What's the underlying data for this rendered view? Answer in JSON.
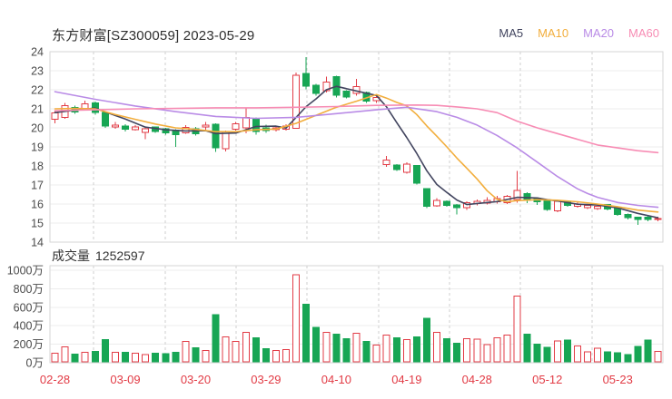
{
  "header": {
    "title": "东方财富[SZ300059] 2023-05-29",
    "legend": [
      {
        "label": "MA5",
        "color": "#42455f"
      },
      {
        "label": "MA10",
        "color": "#f2ae3d"
      },
      {
        "label": "MA20",
        "color": "#b98be6"
      },
      {
        "label": "MA60",
        "color": "#f78cb4"
      }
    ]
  },
  "volume_header": {
    "label": "成交量",
    "value": "1252597"
  },
  "chart_data": {
    "type": "candlestick",
    "title": "东方财富[SZ300059] 2023-05-29",
    "stock": {
      "name": "东方财富",
      "code": "SZ300059",
      "date": "2023-05-29"
    },
    "colors": {
      "up": "#e23b45",
      "down": "#17a654",
      "x_label": "#e23b45",
      "axis_text": "#4a4a4a",
      "grid": "#ececec",
      "grid_dash": "#cfcfcf",
      "border": "#d6d6d6"
    },
    "price_axis": {
      "ticks": [
        24,
        23,
        22,
        21,
        20,
        19,
        18,
        17,
        16,
        15,
        14
      ],
      "max": 24,
      "min": 14
    },
    "volume_axis": {
      "unit": "万",
      "ticks": [
        {
          "label": "1000万",
          "v": 1000
        },
        {
          "label": "800万",
          "v": 800
        },
        {
          "label": "600万",
          "v": 600
        },
        {
          "label": "400万",
          "v": 400
        },
        {
          "label": "200万",
          "v": 200
        },
        {
          "label": "0万",
          "v": 0
        }
      ],
      "max_wan": 1000
    },
    "x_axis": {
      "labels": [
        {
          "index": 0,
          "label": "02-28"
        },
        {
          "index": 7,
          "label": "03-09"
        },
        {
          "index": 14,
          "label": "03-20"
        },
        {
          "index": 21,
          "label": "03-29"
        },
        {
          "index": 28,
          "label": "04-10"
        },
        {
          "index": 35,
          "label": "04-19"
        },
        {
          "index": 42,
          "label": "04-28"
        },
        {
          "index": 49,
          "label": "05-12"
        },
        {
          "index": 56,
          "label": "05-23"
        }
      ]
    },
    "candle_fields": [
      "date",
      "open",
      "close",
      "high",
      "low",
      "volume_wan"
    ],
    "candles": [
      [
        "02-28",
        20.45,
        20.78,
        20.9,
        20.25,
        105
      ],
      [
        "03-01",
        20.55,
        21.17,
        21.3,
        20.48,
        170
      ],
      [
        "03-02",
        21.06,
        20.84,
        21.16,
        20.75,
        95
      ],
      [
        "03-03",
        21.02,
        21.27,
        21.42,
        20.95,
        115
      ],
      [
        "03-06",
        21.3,
        20.8,
        21.38,
        20.7,
        125
      ],
      [
        "03-07",
        20.8,
        20.1,
        20.85,
        20.0,
        250
      ],
      [
        "03-08",
        20.05,
        20.15,
        20.3,
        19.95,
        115
      ],
      [
        "03-09",
        20.1,
        19.92,
        20.2,
        19.8,
        115
      ],
      [
        "03-10",
        19.9,
        20.05,
        20.15,
        19.85,
        105
      ],
      [
        "03-13",
        19.76,
        19.95,
        20.0,
        19.4,
        90
      ],
      [
        "03-14",
        20.05,
        19.82,
        20.08,
        19.75,
        105
      ],
      [
        "03-15",
        19.95,
        19.73,
        20.0,
        19.65,
        100
      ],
      [
        "03-16",
        19.87,
        19.65,
        19.92,
        19.0,
        115
      ],
      [
        "03-17",
        19.73,
        20.03,
        20.15,
        19.7,
        230
      ],
      [
        "03-20",
        19.95,
        19.7,
        20.05,
        19.6,
        160
      ],
      [
        "03-21",
        20.05,
        20.15,
        20.32,
        19.9,
        130
      ],
      [
        "03-22",
        20.19,
        18.95,
        20.25,
        18.75,
        520
      ],
      [
        "03-23",
        18.9,
        19.8,
        19.85,
        18.77,
        280
      ],
      [
        "03-24",
        19.92,
        20.22,
        20.3,
        19.85,
        230
      ],
      [
        "03-27",
        20.0,
        20.55,
        21.08,
        19.72,
        330
      ],
      [
        "03-28",
        20.5,
        19.82,
        20.55,
        19.65,
        270
      ],
      [
        "03-29",
        20.0,
        19.86,
        20.16,
        19.75,
        150
      ],
      [
        "03-30",
        19.9,
        20.0,
        20.1,
        19.8,
        130
      ],
      [
        "03-31",
        19.92,
        20.1,
        20.18,
        19.85,
        140
      ],
      [
        "04-03",
        19.98,
        22.76,
        22.9,
        19.95,
        950
      ],
      [
        "04-04",
        22.85,
        22.2,
        23.72,
        22.02,
        630
      ],
      [
        "04-06",
        22.25,
        21.8,
        22.32,
        21.7,
        380
      ],
      [
        "04-07",
        21.95,
        22.4,
        22.7,
        21.85,
        330
      ],
      [
        "04-10",
        22.7,
        21.72,
        22.75,
        21.6,
        310
      ],
      [
        "04-11",
        21.93,
        21.63,
        21.98,
        21.55,
        260
      ],
      [
        "04-12",
        21.8,
        22.17,
        22.57,
        21.7,
        320
      ],
      [
        "04-13",
        21.85,
        21.4,
        21.9,
        21.3,
        230
      ],
      [
        "04-14",
        21.42,
        21.6,
        21.75,
        21.32,
        190
      ],
      [
        "04-17",
        18.06,
        18.3,
        18.52,
        17.95,
        300
      ],
      [
        "04-18",
        18.05,
        17.82,
        18.1,
        17.73,
        270
      ],
      [
        "04-19",
        17.66,
        18.1,
        18.18,
        17.6,
        250
      ],
      [
        "04-20",
        18.02,
        17.1,
        18.05,
        17.02,
        280
      ],
      [
        "04-21",
        16.8,
        15.88,
        16.82,
        15.78,
        480
      ],
      [
        "04-24",
        15.9,
        16.2,
        16.32,
        15.85,
        330
      ],
      [
        "04-25",
        16.15,
        15.92,
        16.2,
        15.85,
        260
      ],
      [
        "04-26",
        15.95,
        15.8,
        16.0,
        15.45,
        210
      ],
      [
        "04-27",
        15.8,
        16.08,
        16.15,
        15.7,
        260
      ],
      [
        "04-28",
        16.02,
        16.15,
        16.25,
        15.92,
        255
      ],
      [
        "05-04",
        16.05,
        16.2,
        16.35,
        15.98,
        195
      ],
      [
        "05-05",
        16.12,
        16.28,
        16.42,
        16.02,
        270
      ],
      [
        "05-08",
        16.08,
        16.4,
        16.48,
        16.0,
        300
      ],
      [
        "05-09",
        16.25,
        16.72,
        17.73,
        16.08,
        720
      ],
      [
        "05-10",
        16.55,
        16.18,
        16.62,
        16.05,
        310
      ],
      [
        "05-11",
        16.3,
        16.13,
        16.34,
        15.96,
        200
      ],
      [
        "05-12",
        16.22,
        15.72,
        16.26,
        15.64,
        165
      ],
      [
        "05-15",
        15.64,
        16.15,
        16.22,
        15.56,
        235
      ],
      [
        "05-16",
        16.12,
        15.93,
        16.16,
        15.86,
        245
      ],
      [
        "05-17",
        15.89,
        16.01,
        16.1,
        15.81,
        180
      ],
      [
        "05-18",
        15.81,
        15.94,
        16.01,
        15.73,
        120
      ],
      [
        "05-19",
        15.77,
        15.89,
        15.96,
        15.69,
        155
      ],
      [
        "05-22",
        15.98,
        15.73,
        16.0,
        15.66,
        120
      ],
      [
        "05-23",
        15.83,
        15.46,
        15.86,
        15.39,
        110
      ],
      [
        "05-24",
        15.46,
        15.28,
        15.5,
        15.2,
        90
      ],
      [
        "05-25",
        15.3,
        15.18,
        15.34,
        14.9,
        175
      ],
      [
        "05-26",
        15.32,
        15.2,
        15.36,
        15.1,
        245
      ],
      [
        "05-29",
        15.18,
        15.24,
        15.33,
        15.1,
        125
      ]
    ],
    "ma_lines": [
      {
        "name": "MA5",
        "color": "#42455f",
        "points": [
          [
            0,
            20.8
          ],
          [
            2,
            20.93
          ],
          [
            4,
            21.04
          ],
          [
            5,
            20.84
          ],
          [
            7,
            20.46
          ],
          [
            9,
            20.04
          ],
          [
            11,
            19.9
          ],
          [
            13,
            19.84
          ],
          [
            15,
            19.85
          ],
          [
            16,
            19.7
          ],
          [
            18,
            19.73
          ],
          [
            20,
            20.07
          ],
          [
            22,
            20.09
          ],
          [
            23,
            19.99
          ],
          [
            24,
            20.55
          ],
          [
            25,
            21.12
          ],
          [
            26,
            21.53
          ],
          [
            27,
            22.0
          ],
          [
            28,
            22.18
          ],
          [
            30,
            21.94
          ],
          [
            32,
            21.7
          ],
          [
            33,
            21.1
          ],
          [
            34,
            20.28
          ],
          [
            35,
            19.5
          ],
          [
            36,
            18.66
          ],
          [
            37,
            17.75
          ],
          [
            38,
            17.03
          ],
          [
            39,
            16.61
          ],
          [
            40,
            16.21
          ],
          [
            41,
            15.97
          ],
          [
            42,
            16.03
          ],
          [
            44,
            16.13
          ],
          [
            46,
            16.35
          ],
          [
            48,
            16.32
          ],
          [
            49,
            16.23
          ],
          [
            50,
            16.16
          ],
          [
            52,
            15.99
          ],
          [
            54,
            15.95
          ],
          [
            56,
            15.8
          ],
          [
            58,
            15.51
          ],
          [
            60,
            15.28
          ]
        ]
      },
      {
        "name": "MA10",
        "color": "#f2ae3d",
        "points": [
          [
            0,
            21.0
          ],
          [
            2,
            21.02
          ],
          [
            4,
            21.0
          ],
          [
            6,
            20.7
          ],
          [
            8,
            20.45
          ],
          [
            10,
            20.2
          ],
          [
            12,
            20.0
          ],
          [
            14,
            19.92
          ],
          [
            16,
            19.8
          ],
          [
            18,
            19.8
          ],
          [
            20,
            19.9
          ],
          [
            22,
            19.94
          ],
          [
            24,
            20.24
          ],
          [
            26,
            20.66
          ],
          [
            28,
            21.08
          ],
          [
            30,
            21.4
          ],
          [
            32,
            21.75
          ],
          [
            33,
            21.56
          ],
          [
            34,
            21.34
          ],
          [
            35,
            21.16
          ],
          [
            36,
            20.7
          ],
          [
            37,
            20.1
          ],
          [
            38,
            19.56
          ],
          [
            39,
            19.0
          ],
          [
            40,
            18.41
          ],
          [
            41,
            17.87
          ],
          [
            42,
            17.32
          ],
          [
            43,
            16.7
          ],
          [
            44,
            16.25
          ],
          [
            45,
            16.12
          ],
          [
            46,
            16.18
          ],
          [
            48,
            16.23
          ],
          [
            50,
            16.2
          ],
          [
            52,
            16.12
          ],
          [
            54,
            16.0
          ],
          [
            56,
            15.86
          ],
          [
            58,
            15.68
          ],
          [
            60,
            15.58
          ]
        ]
      },
      {
        "name": "MA20",
        "color": "#b98be6",
        "points": [
          [
            0,
            21.9
          ],
          [
            4,
            21.5
          ],
          [
            8,
            21.15
          ],
          [
            12,
            20.85
          ],
          [
            16,
            20.6
          ],
          [
            20,
            20.5
          ],
          [
            24,
            20.55
          ],
          [
            28,
            20.75
          ],
          [
            32,
            20.95
          ],
          [
            35,
            21.08
          ],
          [
            38,
            20.85
          ],
          [
            40,
            20.55
          ],
          [
            42,
            20.15
          ],
          [
            44,
            19.6
          ],
          [
            46,
            18.95
          ],
          [
            48,
            18.2
          ],
          [
            50,
            17.45
          ],
          [
            52,
            16.8
          ],
          [
            53,
            16.55
          ],
          [
            54,
            16.35
          ],
          [
            56,
            16.08
          ],
          [
            58,
            15.93
          ],
          [
            60,
            15.83
          ]
        ]
      },
      {
        "name": "MA60",
        "color": "#f78cb4",
        "points": [
          [
            0,
            20.9
          ],
          [
            4,
            20.95
          ],
          [
            8,
            21.0
          ],
          [
            12,
            21.02
          ],
          [
            16,
            21.05
          ],
          [
            20,
            21.05
          ],
          [
            24,
            21.08
          ],
          [
            28,
            21.12
          ],
          [
            32,
            21.18
          ],
          [
            36,
            21.2
          ],
          [
            38,
            21.18
          ],
          [
            40,
            21.1
          ],
          [
            42,
            21.0
          ],
          [
            44,
            20.8
          ],
          [
            46,
            20.35
          ],
          [
            48,
            20.0
          ],
          [
            50,
            19.7
          ],
          [
            52,
            19.4
          ],
          [
            54,
            19.1
          ],
          [
            56,
            18.95
          ],
          [
            58,
            18.8
          ],
          [
            60,
            18.7
          ]
        ]
      }
    ]
  }
}
